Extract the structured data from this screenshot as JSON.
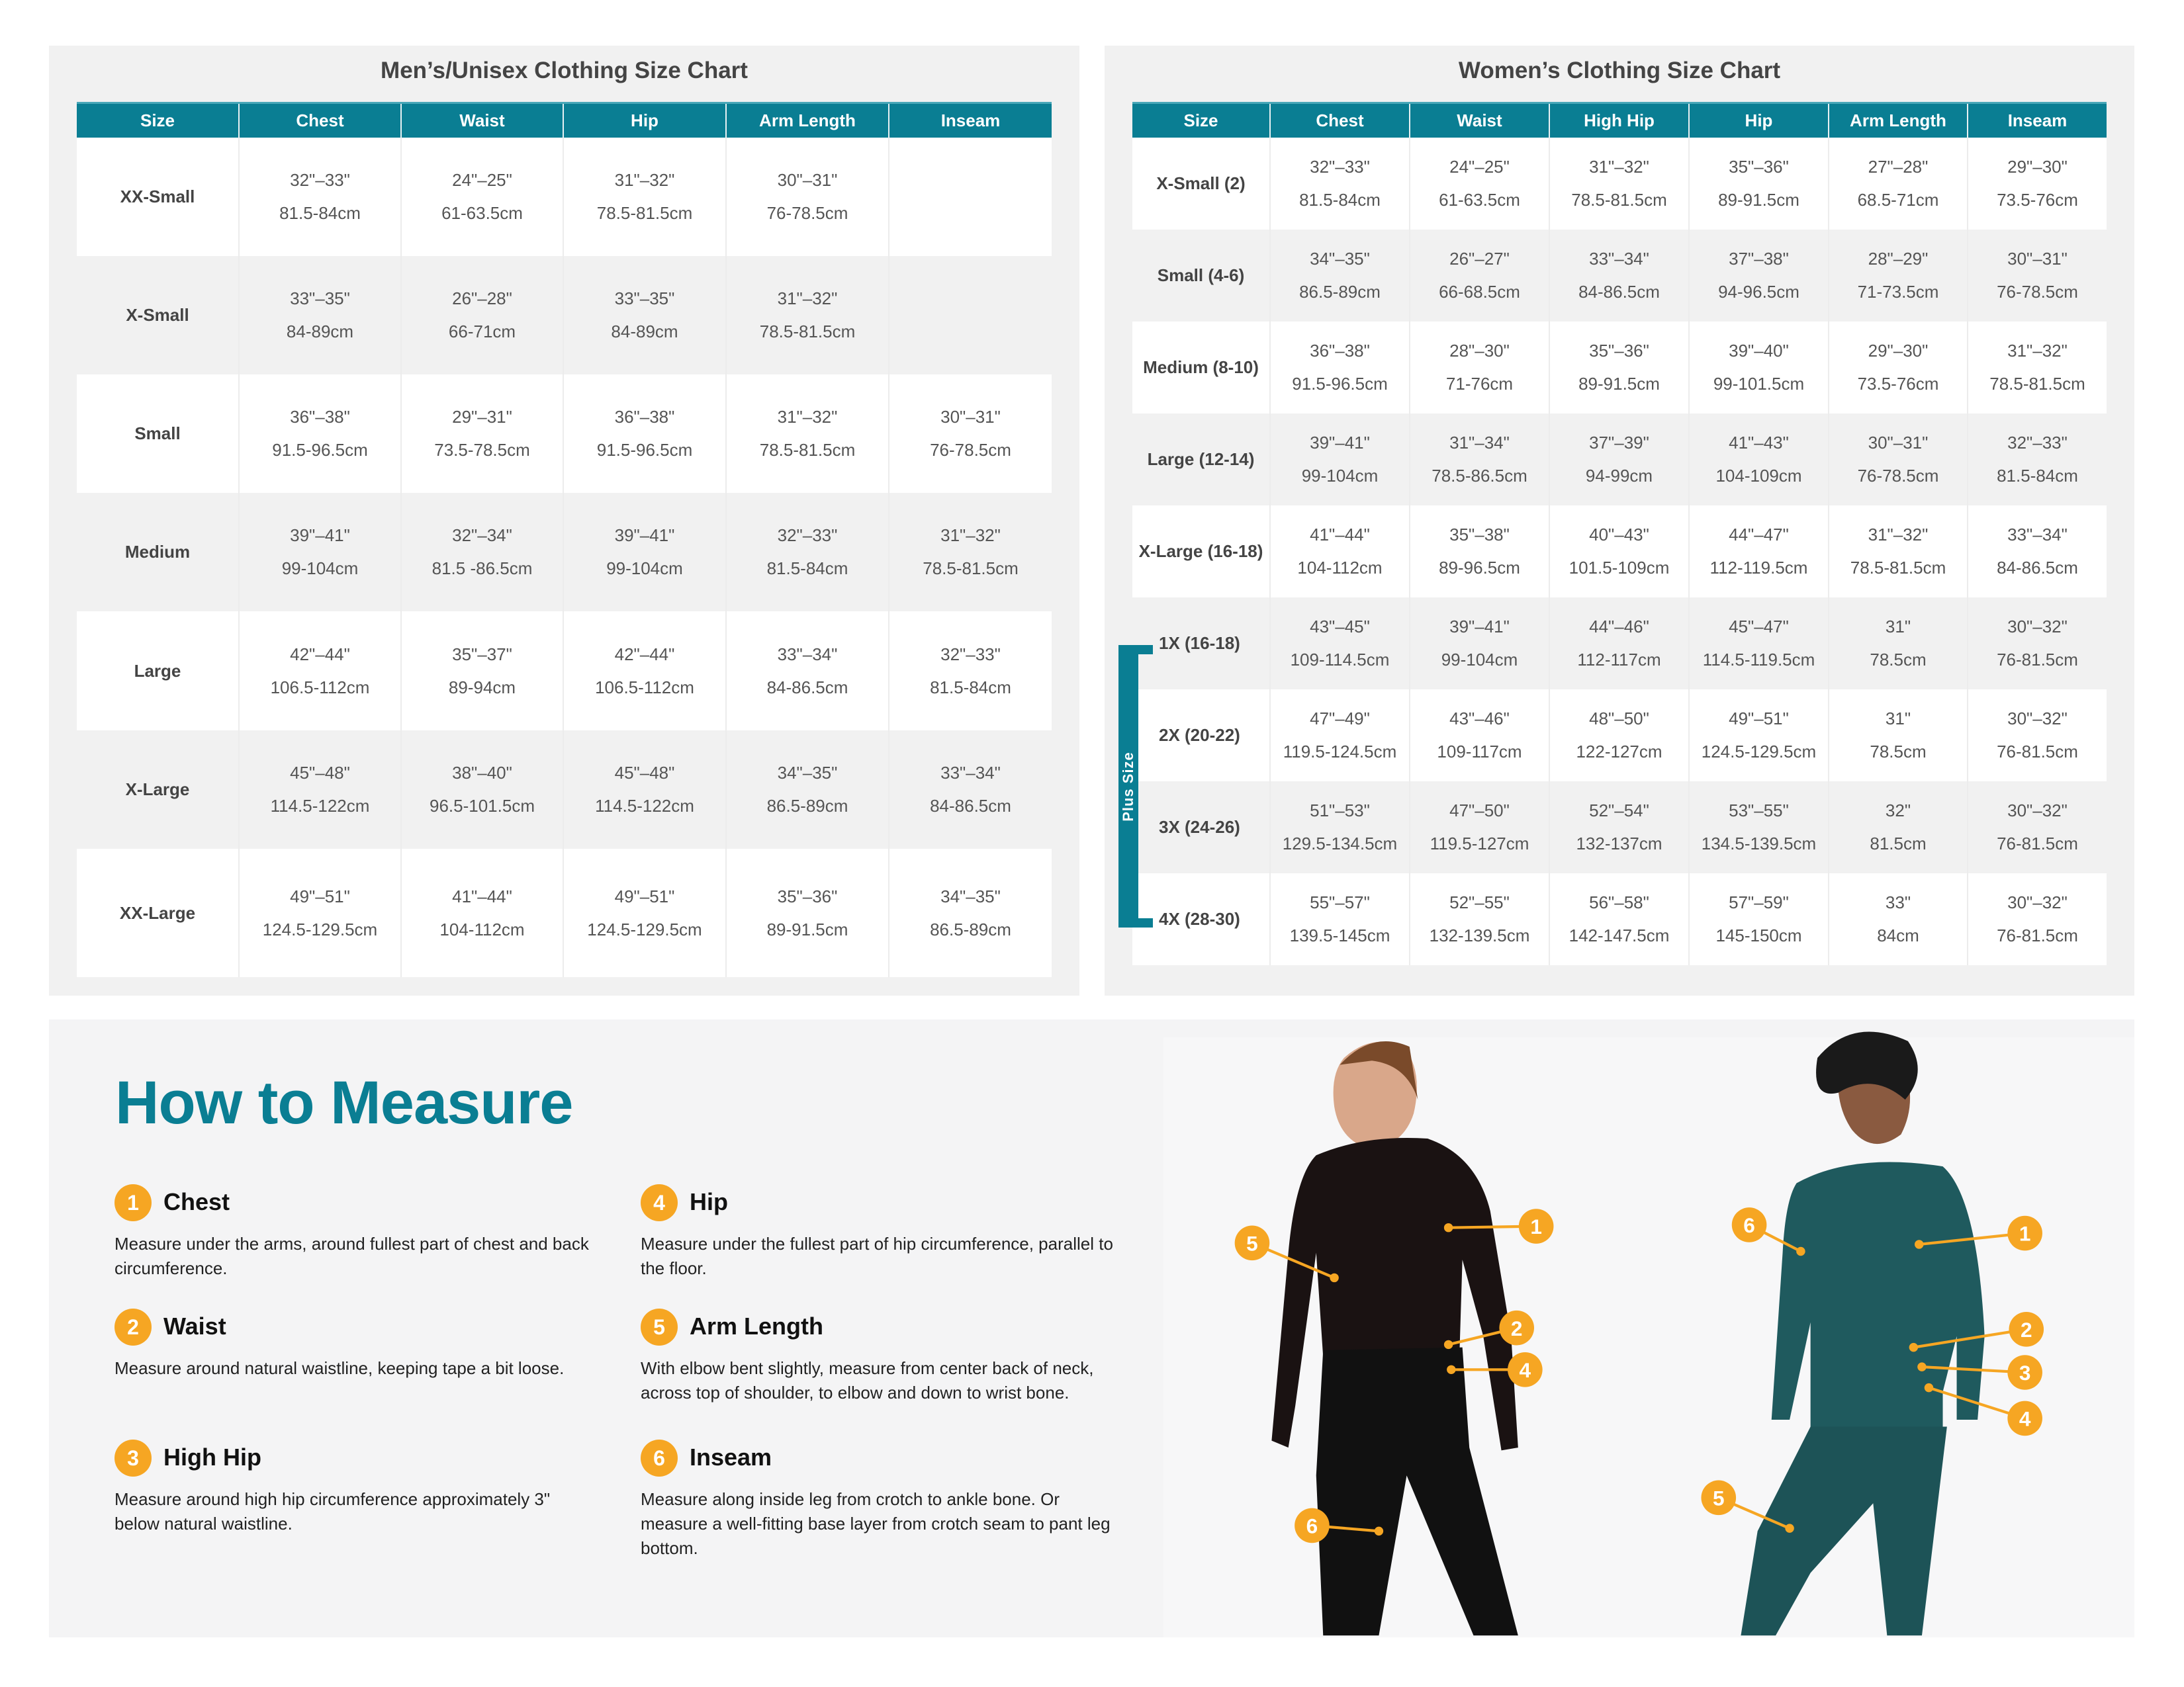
{
  "colors": {
    "header": "#0a7e93",
    "accent": "#f6a623",
    "panel": "#f1f1f1"
  },
  "mens": {
    "title": "Men’s/Unisex Clothing Size Chart",
    "headers": [
      "Size",
      "Chest",
      "Waist",
      "Hip",
      "Arm Length",
      "Inseam"
    ],
    "rows": [
      {
        "size": "XX-Small",
        "cells": [
          [
            "32\"–33\"",
            "81.5-84cm"
          ],
          [
            "24\"–25\"",
            "61-63.5cm"
          ],
          [
            "31\"–32\"",
            "78.5-81.5cm"
          ],
          [
            "30\"–31\"",
            "76-78.5cm"
          ],
          [
            "",
            ""
          ]
        ]
      },
      {
        "size": "X-Small",
        "cells": [
          [
            "33\"–35\"",
            "84-89cm"
          ],
          [
            "26\"–28\"",
            "66-71cm"
          ],
          [
            "33\"–35\"",
            "84-89cm"
          ],
          [
            "31\"–32\"",
            "78.5-81.5cm"
          ],
          [
            "",
            ""
          ]
        ]
      },
      {
        "size": "Small",
        "cells": [
          [
            "36\"–38\"",
            "91.5-96.5cm"
          ],
          [
            "29\"–31\"",
            "73.5-78.5cm"
          ],
          [
            "36\"–38\"",
            "91.5-96.5cm"
          ],
          [
            "31\"–32\"",
            "78.5-81.5cm"
          ],
          [
            "30\"–31\"",
            "76-78.5cm"
          ]
        ]
      },
      {
        "size": "Medium",
        "cells": [
          [
            "39\"–41\"",
            "99-104cm"
          ],
          [
            "32\"–34\"",
            "81.5 -86.5cm"
          ],
          [
            "39\"–41\"",
            "99-104cm"
          ],
          [
            "32\"–33\"",
            "81.5-84cm"
          ],
          [
            "31\"–32\"",
            "78.5-81.5cm"
          ]
        ]
      },
      {
        "size": "Large",
        "cells": [
          [
            "42\"–44\"",
            "106.5-112cm"
          ],
          [
            "35\"–37\"",
            "89-94cm"
          ],
          [
            "42\"–44\"",
            "106.5-112cm"
          ],
          [
            "33\"–34\"",
            "84-86.5cm"
          ],
          [
            "32\"–33\"",
            "81.5-84cm"
          ]
        ]
      },
      {
        "size": "X-Large",
        "cells": [
          [
            "45\"–48\"",
            "114.5-122cm"
          ],
          [
            "38\"–40\"",
            "96.5-101.5cm"
          ],
          [
            "45\"–48\"",
            "114.5-122cm"
          ],
          [
            "34\"–35\"",
            "86.5-89cm"
          ],
          [
            "33\"–34\"",
            "84-86.5cm"
          ]
        ]
      },
      {
        "size": "XX-Large",
        "cells": [
          [
            "49\"–51\"",
            "124.5-129.5cm"
          ],
          [
            "41\"–44\"",
            "104-112cm"
          ],
          [
            "49\"–51\"",
            "124.5-129.5cm"
          ],
          [
            "35\"–36\"",
            "89-91.5cm"
          ],
          [
            "34\"–35\"",
            "86.5-89cm"
          ]
        ]
      }
    ]
  },
  "womens": {
    "title": "Women’s Clothing Size Chart",
    "plus_label": "Plus Size",
    "headers": [
      "Size",
      "Chest",
      "Waist",
      "High Hip",
      "Hip",
      "Arm Length",
      "Inseam"
    ],
    "rows": [
      {
        "size": "X-Small (2)",
        "cells": [
          [
            "32\"–33\"",
            "81.5-84cm"
          ],
          [
            "24\"–25\"",
            "61-63.5cm"
          ],
          [
            "31\"–32\"",
            "78.5-81.5cm"
          ],
          [
            "35\"–36\"",
            "89-91.5cm"
          ],
          [
            "27\"–28\"",
            "68.5-71cm"
          ],
          [
            "29\"–30\"",
            "73.5-76cm"
          ]
        ]
      },
      {
        "size": "Small (4-6)",
        "cells": [
          [
            "34\"–35\"",
            "86.5-89cm"
          ],
          [
            "26\"–27\"",
            "66-68.5cm"
          ],
          [
            "33\"–34\"",
            "84-86.5cm"
          ],
          [
            "37\"–38\"",
            "94-96.5cm"
          ],
          [
            "28\"–29\"",
            "71-73.5cm"
          ],
          [
            "30\"–31\"",
            "76-78.5cm"
          ]
        ]
      },
      {
        "size": "Medium (8-10)",
        "cells": [
          [
            "36\"–38\"",
            "91.5-96.5cm"
          ],
          [
            "28\"–30\"",
            "71-76cm"
          ],
          [
            "35\"–36\"",
            "89-91.5cm"
          ],
          [
            "39\"–40\"",
            "99-101.5cm"
          ],
          [
            "29\"–30\"",
            "73.5-76cm"
          ],
          [
            "31\"–32\"",
            "78.5-81.5cm"
          ]
        ]
      },
      {
        "size": "Large (12-14)",
        "cells": [
          [
            "39\"–41\"",
            "99-104cm"
          ],
          [
            "31\"–34\"",
            "78.5-86.5cm"
          ],
          [
            "37\"–39\"",
            "94-99cm"
          ],
          [
            "41\"–43\"",
            "104-109cm"
          ],
          [
            "30\"–31\"",
            "76-78.5cm"
          ],
          [
            "32\"–33\"",
            "81.5-84cm"
          ]
        ]
      },
      {
        "size": "X-Large (16-18)",
        "cells": [
          [
            "41\"–44\"",
            "104-112cm"
          ],
          [
            "35\"–38\"",
            "89-96.5cm"
          ],
          [
            "40\"–43\"",
            "101.5-109cm"
          ],
          [
            "44\"–47\"",
            "112-119.5cm"
          ],
          [
            "31\"–32\"",
            "78.5-81.5cm"
          ],
          [
            "33\"–34\"",
            "84-86.5cm"
          ]
        ]
      },
      {
        "size": "1X (16-18)",
        "cells": [
          [
            "43\"–45\"",
            "109-114.5cm"
          ],
          [
            "39\"–41\"",
            "99-104cm"
          ],
          [
            "44\"–46\"",
            "112-117cm"
          ],
          [
            "45\"–47\"",
            "114.5-119.5cm"
          ],
          [
            "31\"",
            "78.5cm"
          ],
          [
            "30\"–32\"",
            "76-81.5cm"
          ]
        ]
      },
      {
        "size": "2X (20-22)",
        "cells": [
          [
            "47\"–49\"",
            "119.5-124.5cm"
          ],
          [
            "43\"–46\"",
            "109-117cm"
          ],
          [
            "48\"–50\"",
            "122-127cm"
          ],
          [
            "49\"–51\"",
            "124.5-129.5cm"
          ],
          [
            "31\"",
            "78.5cm"
          ],
          [
            "30\"–32\"",
            "76-81.5cm"
          ]
        ]
      },
      {
        "size": "3X (24-26)",
        "cells": [
          [
            "51\"–53\"",
            "129.5-134.5cm"
          ],
          [
            "47\"–50\"",
            "119.5-127cm"
          ],
          [
            "52\"–54\"",
            "132-137cm"
          ],
          [
            "53\"–55\"",
            "134.5-139.5cm"
          ],
          [
            "32\"",
            "81.5cm"
          ],
          [
            "30\"–32\"",
            "76-81.5cm"
          ]
        ]
      },
      {
        "size": "4X (28-30)",
        "cells": [
          [
            "55\"–57\"",
            "139.5-145cm"
          ],
          [
            "52\"–55\"",
            "132-139.5cm"
          ],
          [
            "56\"–58\"",
            "142-147.5cm"
          ],
          [
            "57\"–59\"",
            "145-150cm"
          ],
          [
            "33\"",
            "84cm"
          ],
          [
            "30\"–32\"",
            "76-81.5cm"
          ]
        ]
      }
    ]
  },
  "measure": {
    "title": "How to Measure",
    "items": [
      {
        "num": "1",
        "title": "Chest",
        "desc": "Measure under the arms, around fullest part of chest and back circumference."
      },
      {
        "num": "2",
        "title": "Waist",
        "desc": "Measure around natural waistline, keeping tape a bit loose."
      },
      {
        "num": "3",
        "title": "High Hip",
        "desc": "Measure around high hip circumference approximately 3\" below natural waistline."
      },
      {
        "num": "4",
        "title": "Hip",
        "desc": "Measure under the fullest part of hip circumference, parallel to the floor."
      },
      {
        "num": "5",
        "title": "Arm Length",
        "desc": "With elbow bent slightly, measure from center back of neck, across top of shoulder, to elbow and down to wrist bone."
      },
      {
        "num": "6",
        "title": "Inseam",
        "desc": "Measure along inside leg from crotch to ankle bone. Or measure a well-fitting base layer from crotch seam to pant leg bottom."
      }
    ],
    "men_callouts": [
      "1",
      "5",
      "2",
      "4",
      "6"
    ],
    "women_callouts": [
      "6",
      "1",
      "2",
      "3",
      "4",
      "5"
    ]
  }
}
